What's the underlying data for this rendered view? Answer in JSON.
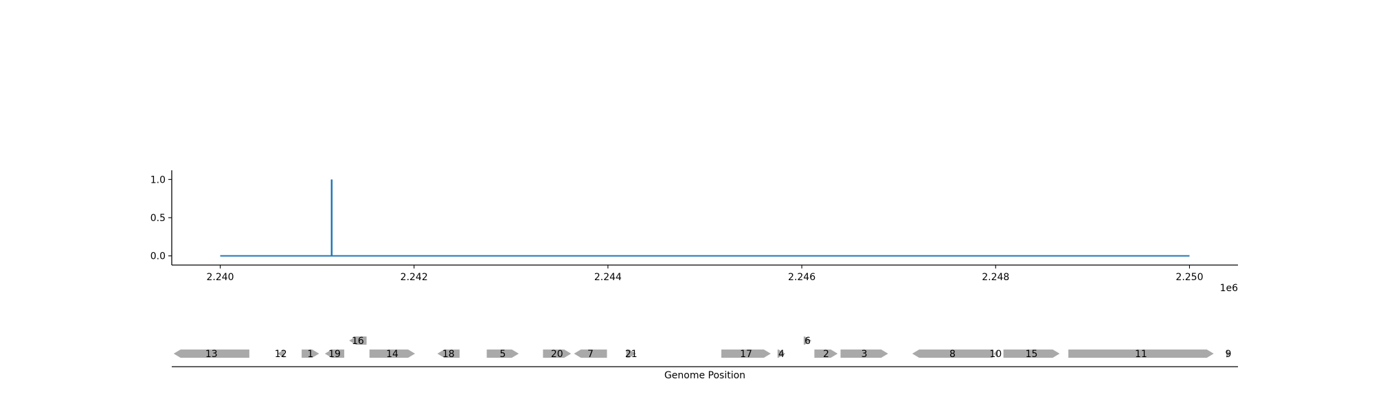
{
  "chart_data": [
    {
      "type": "line",
      "x_range": [
        2240000,
        2250000
      ],
      "xlim": [
        2239500,
        2250500
      ],
      "ylim": [
        -0.12,
        1.12
      ],
      "x_ticks": [
        2240000,
        2242000,
        2244000,
        2246000,
        2248000,
        2250000
      ],
      "x_tick_labels": [
        "2.240",
        "2.242",
        "2.244",
        "2.246",
        "2.248",
        "2.250"
      ],
      "x_offset_label": "1e6",
      "y_ticks": [
        0.0,
        0.5,
        1.0
      ],
      "y_tick_labels": [
        "0.0",
        "0.5",
        "1.0"
      ],
      "baseline": 0.0,
      "spikes": [
        {
          "x": 2241150,
          "y": 1.0
        }
      ],
      "color": "#1f77b4",
      "grid": false
    },
    {
      "type": "gene-track",
      "xlabel": "Genome Position",
      "color": "#a9a9a9",
      "genes": [
        {
          "label": "13",
          "start": 2239520,
          "end": 2240300,
          "strand": "-",
          "row": 0
        },
        {
          "label": "12",
          "start": 2240590,
          "end": 2240660,
          "strand": "-",
          "row": 0
        },
        {
          "label": "1",
          "start": 2240840,
          "end": 2241020,
          "strand": "+",
          "row": 0
        },
        {
          "label": "19",
          "start": 2241080,
          "end": 2241280,
          "strand": "-",
          "row": 0
        },
        {
          "label": "16",
          "start": 2241330,
          "end": 2241510,
          "strand": "-",
          "row": 1
        },
        {
          "label": "14",
          "start": 2241540,
          "end": 2242010,
          "strand": "+",
          "row": 0
        },
        {
          "label": "18",
          "start": 2242240,
          "end": 2242470,
          "strand": "-",
          "row": 0
        },
        {
          "label": "5",
          "start": 2242750,
          "end": 2243080,
          "strand": "+",
          "row": 0
        },
        {
          "label": "20",
          "start": 2243330,
          "end": 2243620,
          "strand": "+",
          "row": 0
        },
        {
          "label": "7",
          "start": 2243650,
          "end": 2243990,
          "strand": "-",
          "row": 0
        },
        {
          "label": "21",
          "start": 2244190,
          "end": 2244290,
          "strand": "+",
          "row": 0
        },
        {
          "label": "17",
          "start": 2245170,
          "end": 2245680,
          "strand": "+",
          "row": 0
        },
        {
          "label": "4",
          "start": 2245750,
          "end": 2245830,
          "strand": "+",
          "row": 0
        },
        {
          "label": "6",
          "start": 2246020,
          "end": 2246100,
          "strand": "+",
          "row": 1
        },
        {
          "label": "2",
          "start": 2246130,
          "end": 2246370,
          "strand": "+",
          "row": 0
        },
        {
          "label": "3",
          "start": 2246400,
          "end": 2246890,
          "strand": "+",
          "row": 0
        },
        {
          "label": "8",
          "start": 2247140,
          "end": 2247970,
          "strand": "-",
          "row": 0
        },
        {
          "label": "10",
          "start": 2247980,
          "end": 2248020,
          "strand": "-",
          "row": 0
        },
        {
          "label": "15",
          "start": 2248080,
          "end": 2248660,
          "strand": "+",
          "row": 0
        },
        {
          "label": "11",
          "start": 2248750,
          "end": 2250250,
          "strand": "+",
          "row": 0
        },
        {
          "label": "9",
          "start": 2250380,
          "end": 2250420,
          "strand": "+",
          "row": 0
        }
      ]
    }
  ]
}
